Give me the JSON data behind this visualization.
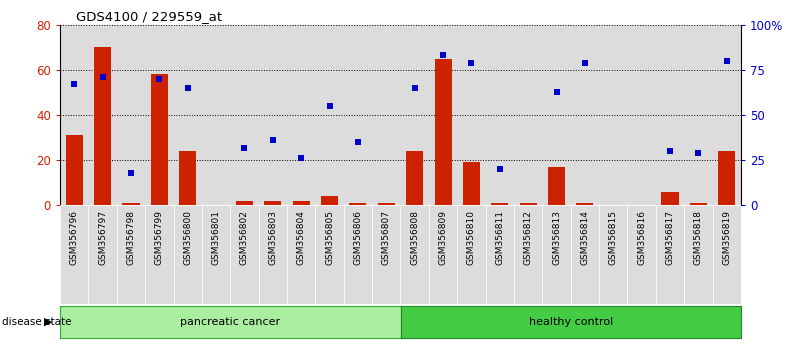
{
  "title": "GDS4100 / 229559_at",
  "samples": [
    "GSM356796",
    "GSM356797",
    "GSM356798",
    "GSM356799",
    "GSM356800",
    "GSM356801",
    "GSM356802",
    "GSM356803",
    "GSM356804",
    "GSM356805",
    "GSM356806",
    "GSM356807",
    "GSM356808",
    "GSM356809",
    "GSM356810",
    "GSM356811",
    "GSM356812",
    "GSM356813",
    "GSM356814",
    "GSM356815",
    "GSM356816",
    "GSM356817",
    "GSM356818",
    "GSM356819"
  ],
  "counts": [
    31,
    70,
    1,
    58,
    24,
    0,
    2,
    2,
    2,
    4,
    1,
    1,
    24,
    65,
    19,
    1,
    1,
    17,
    1,
    0,
    0,
    6,
    1,
    24
  ],
  "percentiles": [
    67,
    71,
    18,
    70,
    65,
    null,
    32,
    36,
    26,
    55,
    35,
    null,
    65,
    83,
    79,
    20,
    null,
    63,
    79,
    null,
    null,
    30,
    29,
    80
  ],
  "bar_color": "#CC2200",
  "dot_color": "#0000CC",
  "cell_bg_color": "#DCDCDC",
  "pc_color": "#AAEEA0",
  "hc_color": "#44CC44",
  "left_ylim": [
    0,
    80
  ],
  "right_ylim": [
    0,
    100
  ],
  "left_yticks": [
    0,
    20,
    40,
    60,
    80
  ],
  "right_yticks": [
    0,
    25,
    50,
    75,
    100
  ],
  "right_yticklabels": [
    "0",
    "25",
    "50",
    "75",
    "100%"
  ],
  "pc_count": 12,
  "hc_count": 12
}
